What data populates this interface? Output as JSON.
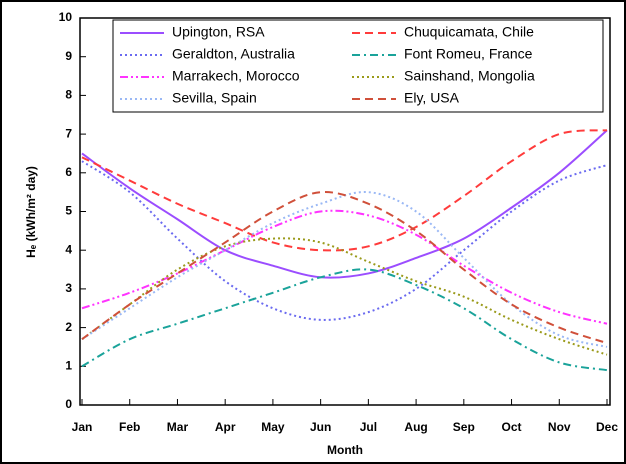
{
  "chart_data": {
    "type": "line",
    "xlabel": "Month",
    "ylabel": "Hₑ (kWh/m² day)",
    "categories": [
      "Jan",
      "Feb",
      "Mar",
      "Apr",
      "May",
      "Jun",
      "Jul",
      "Aug",
      "Sep",
      "Oct",
      "Nov",
      "Dec"
    ],
    "ylim": [
      0,
      10
    ],
    "yticks": [
      0,
      1,
      2,
      3,
      4,
      5,
      6,
      7,
      8,
      9,
      10
    ],
    "series": [
      {
        "name": "Upington, RSA",
        "color": "#9b4dff",
        "dash": "solid",
        "values": [
          6.5,
          5.6,
          4.8,
          4.0,
          3.6,
          3.3,
          3.4,
          3.8,
          4.3,
          5.1,
          6.0,
          7.1
        ]
      },
      {
        "name": "Chuquicamata, Chile",
        "color": "#ff3b3b",
        "dash": "dash",
        "values": [
          6.4,
          5.8,
          5.2,
          4.7,
          4.2,
          4.0,
          4.1,
          4.6,
          5.4,
          6.3,
          7.0,
          7.1
        ]
      },
      {
        "name": "Geraldton, Australia",
        "color": "#6a6af0",
        "dash": "dot",
        "values": [
          6.3,
          5.5,
          4.3,
          3.2,
          2.5,
          2.2,
          2.4,
          3.0,
          4.0,
          5.0,
          5.8,
          6.2
        ]
      },
      {
        "name": "Font Romeu, France",
        "color": "#1aa39a",
        "dash": "dashdot",
        "values": [
          1.0,
          1.7,
          2.1,
          2.5,
          2.9,
          3.3,
          3.5,
          3.1,
          2.5,
          1.7,
          1.1,
          0.9
        ]
      },
      {
        "name": "Marrakech, Morocco",
        "color": "#ff33ff",
        "dash": "dashdotdot",
        "values": [
          2.5,
          2.9,
          3.4,
          4.0,
          4.6,
          5.0,
          4.9,
          4.4,
          3.6,
          2.9,
          2.4,
          2.1
        ]
      },
      {
        "name": "Sainshand, Mongolia",
        "color": "#9a9a1a",
        "dash": "dot",
        "values": [
          1.7,
          2.6,
          3.5,
          4.1,
          4.3,
          4.2,
          3.7,
          3.2,
          2.8,
          2.2,
          1.7,
          1.3
        ]
      },
      {
        "name": "Sevilla, Spain",
        "color": "#9ab8f5",
        "dash": "dot",
        "values": [
          1.7,
          2.5,
          3.3,
          4.0,
          4.7,
          5.2,
          5.5,
          5.0,
          3.8,
          2.6,
          1.8,
          1.5
        ]
      },
      {
        "name": "Ely, USA",
        "color": "#d0503a",
        "dash": "dash",
        "values": [
          1.7,
          2.6,
          3.4,
          4.2,
          5.0,
          5.5,
          5.2,
          4.5,
          3.5,
          2.6,
          2.0,
          1.6
        ]
      }
    ]
  }
}
